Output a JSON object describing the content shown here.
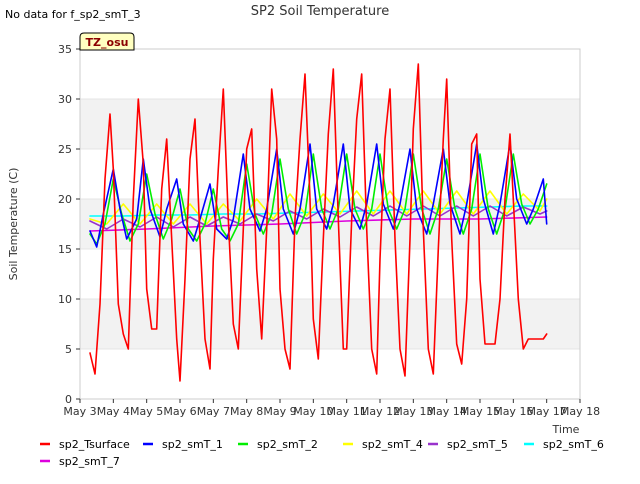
{
  "no_data_note": "No data for f_sp2_smT_3",
  "site_badge": "TZ_osu",
  "chart_data": {
    "type": "line",
    "title": "SP2 Soil Temperature",
    "xlabel": "Time",
    "ylabel": "Soil Temperature (C)",
    "xlim": [
      3,
      18
    ],
    "ylim": [
      0,
      35
    ],
    "x_ticks": [
      3,
      4,
      5,
      6,
      7,
      8,
      9,
      10,
      11,
      12,
      13,
      14,
      15,
      16,
      17,
      18
    ],
    "x_tick_labels": [
      "May 3",
      "May 4",
      "May 5",
      "May 6",
      "May 7",
      "May 8",
      "May 9",
      "May 10",
      "May 11",
      "May 12",
      "May 13",
      "May 14",
      "May 15",
      "May 16",
      "May 17",
      "May 18"
    ],
    "y_ticks": [
      0,
      5,
      10,
      15,
      20,
      25,
      30,
      35
    ],
    "y_tick_labels": [
      "0",
      "5",
      "10",
      "15",
      "20",
      "25",
      "30",
      "35"
    ],
    "grid": "horizontal bands",
    "legend_position": "bottom",
    "series": [
      {
        "name": "sp2_Tsurface",
        "color": "#ff0000",
        "x": [
          3.3,
          3.45,
          3.6,
          3.75,
          3.9,
          4.0,
          4.15,
          4.3,
          4.45,
          4.6,
          4.75,
          4.9,
          5.0,
          5.15,
          5.3,
          5.45,
          5.6,
          5.75,
          5.9,
          6.0,
          6.15,
          6.3,
          6.45,
          6.6,
          6.75,
          6.9,
          7.0,
          7.15,
          7.3,
          7.45,
          7.6,
          7.75,
          7.9,
          8.0,
          8.15,
          8.3,
          8.45,
          8.6,
          8.75,
          8.9,
          9.0,
          9.15,
          9.3,
          9.45,
          9.6,
          9.75,
          9.9,
          10.0,
          10.15,
          10.3,
          10.45,
          10.6,
          10.75,
          10.9,
          11.0,
          11.15,
          11.3,
          11.45,
          11.6,
          11.75,
          11.9,
          12.0,
          12.15,
          12.3,
          12.45,
          12.6,
          12.75,
          12.9,
          13.0,
          13.15,
          13.3,
          13.45,
          13.6,
          13.75,
          13.9,
          14.0,
          14.15,
          14.3,
          14.45,
          14.6,
          14.75,
          14.9,
          15.0,
          15.15,
          15.3,
          15.45,
          15.6,
          15.75,
          15.9,
          16.0,
          16.15,
          16.3,
          16.45,
          16.6,
          16.75,
          16.9,
          17.0
        ],
        "values": [
          4.6,
          2.5,
          9.5,
          22.0,
          28.5,
          23.0,
          9.5,
          6.5,
          5.0,
          20.0,
          30.0,
          23.5,
          11.0,
          7.0,
          7.0,
          21.0,
          26.0,
          16.0,
          6.0,
          1.8,
          12.0,
          24.0,
          28.0,
          16.0,
          6.0,
          3.0,
          14.0,
          23.0,
          31.0,
          18.0,
          7.5,
          5.0,
          17.0,
          25.0,
          27.0,
          13.0,
          6.0,
          17.0,
          31.0,
          26.0,
          11.0,
          5.0,
          3.0,
          18.0,
          26.0,
          32.5,
          20.0,
          8.0,
          4.0,
          16.0,
          26.5,
          33.0,
          18.0,
          5.0,
          5.0,
          18.0,
          28.0,
          32.5,
          17.0,
          5.0,
          2.5,
          14.0,
          26.0,
          31.0,
          16.0,
          5.0,
          2.3,
          16.0,
          27.0,
          33.5,
          17.0,
          5.0,
          2.5,
          15.0,
          26.0,
          32.0,
          16.0,
          5.5,
          3.5,
          10.0,
          25.5,
          26.5,
          12.0,
          5.5,
          5.5,
          5.5,
          10.0,
          20.0,
          26.5,
          20.0,
          10.0,
          5.0,
          6.0,
          6.0,
          6.0,
          6.0,
          6.5
        ]
      },
      {
        "name": "sp2_smT_1",
        "color": "#0000ff",
        "x": [
          3.3,
          3.5,
          3.7,
          4.0,
          4.2,
          4.4,
          4.7,
          4.9,
          5.1,
          5.4,
          5.6,
          5.9,
          6.1,
          6.4,
          6.6,
          6.9,
          7.1,
          7.4,
          7.6,
          7.9,
          8.1,
          8.4,
          8.6,
          8.9,
          9.1,
          9.4,
          9.6,
          9.9,
          10.1,
          10.4,
          10.6,
          10.9,
          11.1,
          11.4,
          11.6,
          11.9,
          12.1,
          12.4,
          12.6,
          12.9,
          13.1,
          13.4,
          13.6,
          13.9,
          14.1,
          14.4,
          14.6,
          14.9,
          15.1,
          15.4,
          15.6,
          15.9,
          16.1,
          16.4,
          16.6,
          16.9,
          17.0
        ],
        "values": [
          16.8,
          15.2,
          18.5,
          23.0,
          19.0,
          16.0,
          18.0,
          24.0,
          19.0,
          16.2,
          19.0,
          22.0,
          17.5,
          15.8,
          18.0,
          21.5,
          17.0,
          16.0,
          18.0,
          24.5,
          19.0,
          16.8,
          19.0,
          25.0,
          19.0,
          16.5,
          19.0,
          25.5,
          19.0,
          17.0,
          19.5,
          25.5,
          19.0,
          17.0,
          19.5,
          25.5,
          19.5,
          17.0,
          19.5,
          25.0,
          19.0,
          16.5,
          19.5,
          25.0,
          19.5,
          16.5,
          19.5,
          25.5,
          20.0,
          16.5,
          19.5,
          25.5,
          20.0,
          17.5,
          19.0,
          22.0,
          17.5
        ]
      },
      {
        "name": "sp2_smT_2",
        "color": "#00ee00",
        "x": [
          3.3,
          3.5,
          3.75,
          4.0,
          4.25,
          4.5,
          4.75,
          5.0,
          5.25,
          5.5,
          5.75,
          6.0,
          6.25,
          6.5,
          6.75,
          7.0,
          7.25,
          7.5,
          7.75,
          8.0,
          8.25,
          8.5,
          8.75,
          9.0,
          9.25,
          9.5,
          9.75,
          10.0,
          10.25,
          10.5,
          10.75,
          11.0,
          11.25,
          11.5,
          11.75,
          12.0,
          12.25,
          12.5,
          12.75,
          13.0,
          13.25,
          13.5,
          13.75,
          14.0,
          14.25,
          14.5,
          14.75,
          15.0,
          15.25,
          15.5,
          15.75,
          16.0,
          16.25,
          16.5,
          16.75,
          17.0
        ],
        "values": [
          16.5,
          15.5,
          17.5,
          22.0,
          18.5,
          15.8,
          17.5,
          22.5,
          18.5,
          16.0,
          18.0,
          21.0,
          17.0,
          15.8,
          17.5,
          21.0,
          17.0,
          15.8,
          17.5,
          23.5,
          18.5,
          16.5,
          18.5,
          24.0,
          19.0,
          16.5,
          18.5,
          24.5,
          19.0,
          17.0,
          19.0,
          24.5,
          19.0,
          17.0,
          19.0,
          24.5,
          19.0,
          17.0,
          19.0,
          24.5,
          19.0,
          16.5,
          19.0,
          24.0,
          19.0,
          16.5,
          19.0,
          24.5,
          19.0,
          16.5,
          19.0,
          24.5,
          19.5,
          17.5,
          19.0,
          21.5
        ]
      },
      {
        "name": "sp2_smT_4",
        "color": "#ffff00",
        "x": [
          3.3,
          3.8,
          4.3,
          4.8,
          5.3,
          5.8,
          6.3,
          6.8,
          7.3,
          7.8,
          8.3,
          8.8,
          9.3,
          9.8,
          10.3,
          10.8,
          11.3,
          11.8,
          12.3,
          12.8,
          13.3,
          13.8,
          14.3,
          14.8,
          15.3,
          15.8,
          16.3,
          16.8,
          17.0
        ],
        "values": [
          18.0,
          17.5,
          19.5,
          17.5,
          19.5,
          17.5,
          19.5,
          17.5,
          19.5,
          17.8,
          20.0,
          18.0,
          20.5,
          18.3,
          20.5,
          18.5,
          20.8,
          18.5,
          20.8,
          18.5,
          20.8,
          18.5,
          20.8,
          18.5,
          20.8,
          18.5,
          20.5,
          18.8,
          20.0
        ]
      },
      {
        "name": "sp2_smT_5",
        "color": "#9933cc",
        "x": [
          3.3,
          3.8,
          4.3,
          4.8,
          5.3,
          5.8,
          6.3,
          6.8,
          7.3,
          7.8,
          8.3,
          8.8,
          9.3,
          9.8,
          10.3,
          10.8,
          11.3,
          11.8,
          12.3,
          12.8,
          13.3,
          13.8,
          14.3,
          14.8,
          15.3,
          15.8,
          16.3,
          16.8,
          17.0
        ],
        "values": [
          17.8,
          17.0,
          18.0,
          17.2,
          18.2,
          17.2,
          18.2,
          17.3,
          18.2,
          17.5,
          18.5,
          17.8,
          18.8,
          18.0,
          19.0,
          18.2,
          19.2,
          18.3,
          19.3,
          18.3,
          19.3,
          18.3,
          19.3,
          18.3,
          19.3,
          18.3,
          19.2,
          18.5,
          18.8
        ]
      },
      {
        "name": "sp2_smT_6",
        "color": "#00ffff",
        "x": [
          3.3,
          4.3,
          5.3,
          6.3,
          7.3,
          8.3,
          9.3,
          10.3,
          11.3,
          12.3,
          13.3,
          14.3,
          15.3,
          16.3,
          17.0
        ],
        "values": [
          18.3,
          18.3,
          18.4,
          18.4,
          18.5,
          18.5,
          18.6,
          18.7,
          18.8,
          18.9,
          19.0,
          19.1,
          19.2,
          19.3,
          19.3
        ]
      },
      {
        "name": "sp2_smT_7",
        "color": "#dd00dd",
        "x": [
          3.3,
          5.0,
          7.0,
          9.0,
          11.0,
          13.0,
          15.0,
          17.0
        ],
        "values": [
          16.8,
          17.0,
          17.3,
          17.5,
          17.8,
          18.0,
          18.0,
          18.2
        ]
      }
    ]
  }
}
